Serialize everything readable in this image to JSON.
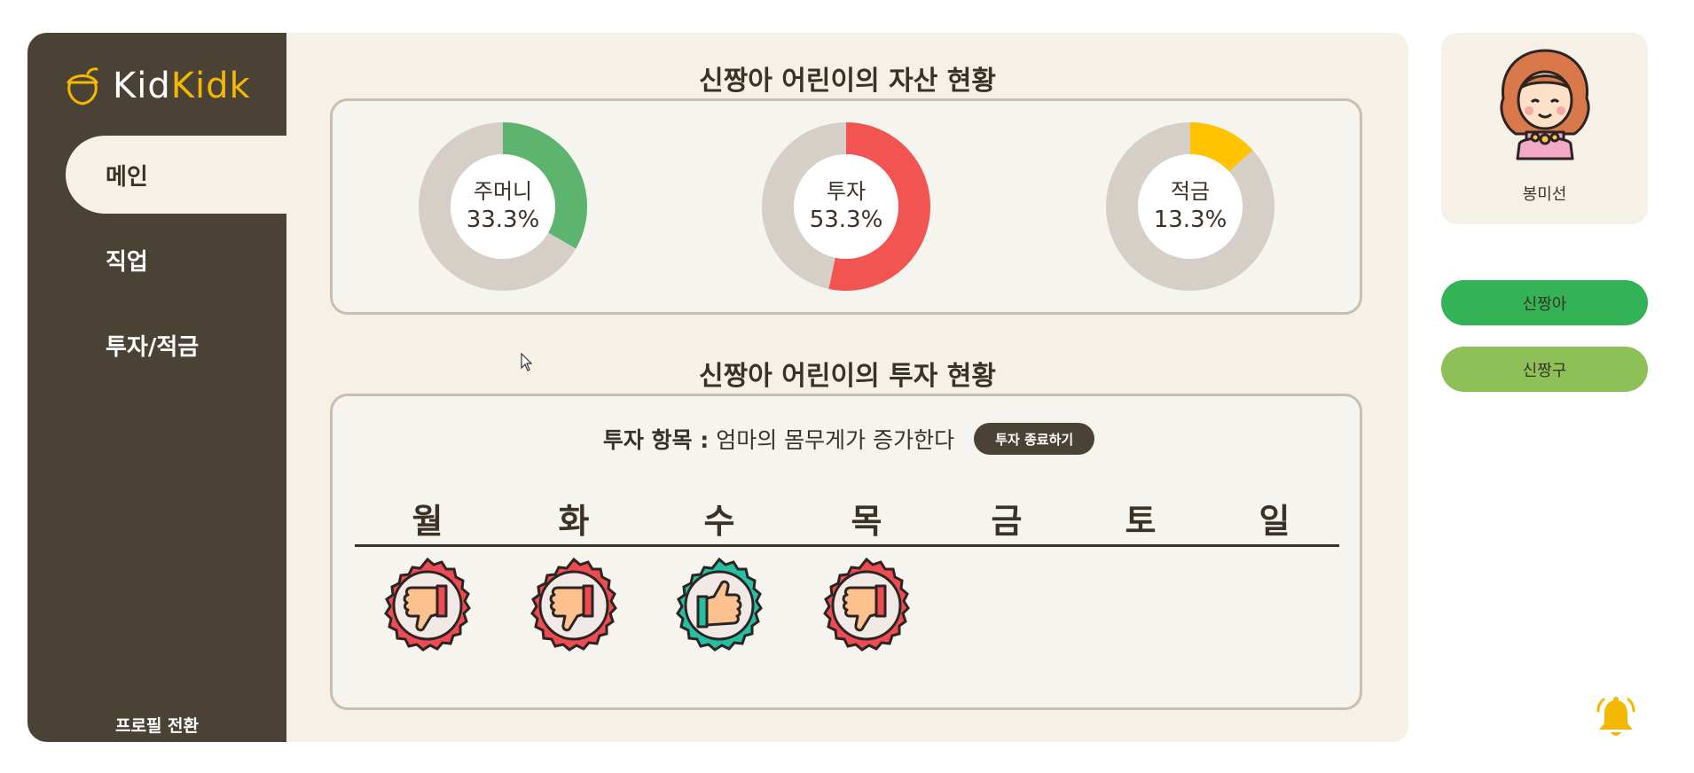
{
  "app": {
    "logo_part1": "Kid",
    "logo_part2": "Kidk",
    "brand_color": "#f5b800"
  },
  "sidebar": {
    "items": [
      {
        "label": "메인",
        "active": true
      },
      {
        "label": "직업",
        "active": false
      },
      {
        "label": "투자/적금",
        "active": false
      }
    ],
    "profile_switch": "프로필 전환"
  },
  "assets": {
    "title": "신짱아 어린이의 자산 현황",
    "donuts": [
      {
        "name": "주머니",
        "percent_label": "33.3%",
        "percent": 33.3,
        "color": "#5db46e"
      },
      {
        "name": "투자",
        "percent_label": "53.3%",
        "percent": 53.3,
        "color": "#f25452"
      },
      {
        "name": "적금",
        "percent_label": "13.3%",
        "percent": 13.3,
        "color": "#ffc300"
      }
    ],
    "track_color": "#d5cfc8"
  },
  "investment": {
    "title": "신짱아 어린이의 투자 현황",
    "item_label": "투자 항목 :",
    "item_value": "엄마의 몸무게가 증가한다",
    "end_button": "투자 종료하기",
    "days": [
      "월",
      "화",
      "수",
      "목",
      "금",
      "토",
      "일"
    ],
    "results": [
      "thumbs-down",
      "thumbs-down",
      "thumbs-up",
      "thumbs-down"
    ]
  },
  "profile": {
    "name": "봉미선"
  },
  "children": [
    {
      "label": "신짱아",
      "color": "#34b256"
    },
    {
      "label": "신짱구",
      "color": "#8dc158"
    }
  ]
}
